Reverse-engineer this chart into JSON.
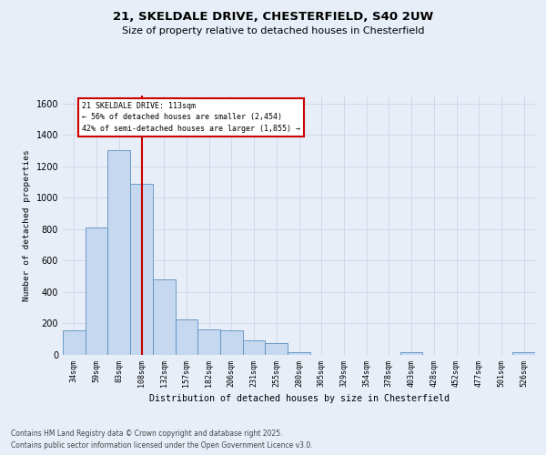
{
  "title_line1": "21, SKELDALE DRIVE, CHESTERFIELD, S40 2UW",
  "title_line2": "Size of property relative to detached houses in Chesterfield",
  "xlabel": "Distribution of detached houses by size in Chesterfield",
  "ylabel": "Number of detached properties",
  "categories": [
    "34sqm",
    "59sqm",
    "83sqm",
    "108sqm",
    "132sqm",
    "157sqm",
    "182sqm",
    "206sqm",
    "231sqm",
    "255sqm",
    "280sqm",
    "305sqm",
    "329sqm",
    "354sqm",
    "378sqm",
    "403sqm",
    "428sqm",
    "452sqm",
    "477sqm",
    "501sqm",
    "526sqm"
  ],
  "values": [
    155,
    810,
    1300,
    1090,
    480,
    225,
    160,
    155,
    90,
    75,
    20,
    0,
    0,
    0,
    0,
    20,
    0,
    0,
    0,
    0,
    20
  ],
  "bar_color": "#c5d8f0",
  "bar_edge_color": "#5a8fc0",
  "vline_color": "#cc0000",
  "vline_x": 3,
  "annotation_title": "21 SKELDALE DRIVE: 113sqm",
  "annotation_line2": "← 56% of detached houses are smaller (2,454)",
  "annotation_line3": "42% of semi-detached houses are larger (1,855) →",
  "annotation_edge_color": "#cc0000",
  "ylim_max": 1650,
  "yticks": [
    0,
    200,
    400,
    600,
    800,
    1000,
    1200,
    1400,
    1600
  ],
  "footnote1": "Contains HM Land Registry data © Crown copyright and database right 2025.",
  "footnote2": "Contains public sector information licensed under the Open Government Licence v3.0.",
  "bg_color": "#e8eef8",
  "grid_color": "#d0d8e8"
}
